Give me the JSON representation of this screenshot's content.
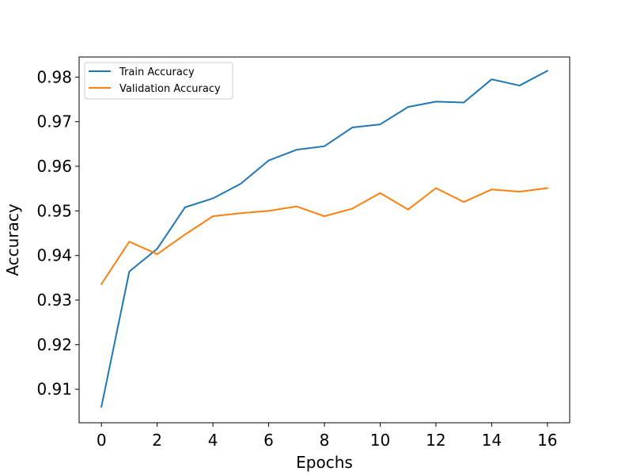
{
  "chart_data": {
    "type": "line",
    "xlabel": "Epochs",
    "ylabel": "Accuracy",
    "xlim": [
      -0.8,
      16.8
    ],
    "ylim": [
      0.9025,
      0.9845
    ],
    "xticks": [
      0,
      2,
      4,
      6,
      8,
      10,
      12,
      14,
      16
    ],
    "yticks": [
      0.91,
      0.92,
      0.93,
      0.94,
      0.95,
      0.96,
      0.97,
      0.98
    ],
    "grid": false,
    "legend_position": "top-left",
    "x": [
      0,
      1,
      2,
      3,
      4,
      5,
      6,
      7,
      8,
      9,
      10,
      11,
      12,
      13,
      14,
      15,
      16
    ],
    "series": [
      {
        "name": "Train Accuracy",
        "color": "#1f77b4",
        "values": [
          0.9061,
          0.9364,
          0.9415,
          0.9508,
          0.9528,
          0.9561,
          0.9613,
          0.9637,
          0.9645,
          0.9687,
          0.9694,
          0.9733,
          0.9745,
          0.9743,
          0.9795,
          0.9781,
          0.9814
        ]
      },
      {
        "name": "Validation Accuracy",
        "color": "#ff7f0e",
        "values": [
          0.9336,
          0.9431,
          0.9403,
          0.9447,
          0.9488,
          0.9495,
          0.95,
          0.951,
          0.9488,
          0.9505,
          0.954,
          0.9503,
          0.9551,
          0.952,
          0.9548,
          0.9543,
          0.9551
        ]
      }
    ]
  }
}
